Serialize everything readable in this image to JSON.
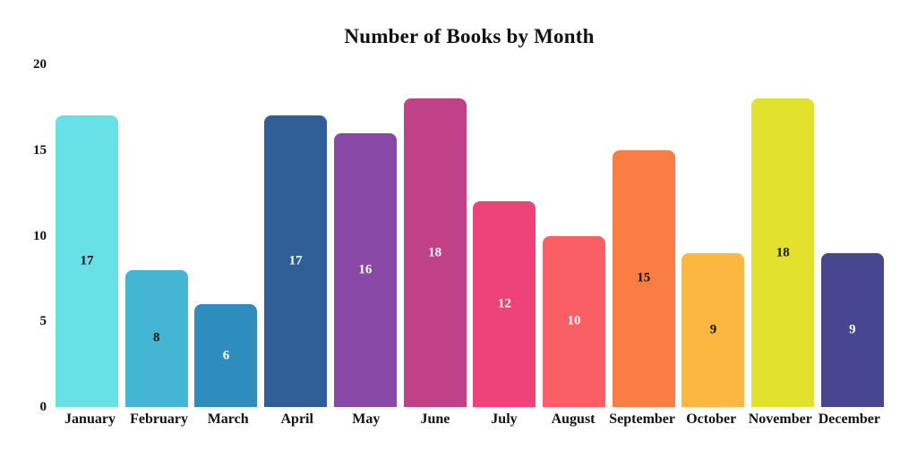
{
  "chart_data": {
    "type": "bar",
    "title": "Number of Books by Month",
    "categories": [
      "January",
      "February",
      "March",
      "April",
      "May",
      "June",
      "July",
      "August",
      "September",
      "October",
      "November",
      "December"
    ],
    "values": [
      17,
      8,
      6,
      17,
      16,
      18,
      12,
      10,
      15,
      9,
      18,
      9
    ],
    "bar_colors": [
      "#68E1E6",
      "#45B5D4",
      "#2E8DBC",
      "#2F5F96",
      "#8849A6",
      "#C04187",
      "#EE4378",
      "#FB5F66",
      "#FA7D44",
      "#FCB740",
      "#E2E22E",
      "#484691"
    ],
    "value_label_colors": [
      "#161616",
      "#161616",
      "#FAFAFA",
      "#FAFAFA",
      "#FAFAFA",
      "#FAFAFA",
      "#FAFAFA",
      "#FAFAFA",
      "#161616",
      "#161616",
      "#161616",
      "#FAFAFA"
    ],
    "value_label_position": "center-of-bar",
    "xlabel": "",
    "ylabel": "",
    "ylim": [
      0,
      20
    ],
    "yticks": [
      0,
      5,
      10,
      15,
      20
    ],
    "grid": false,
    "legend": false,
    "background_color": "#FFFFFF",
    "text_color": "#111111"
  }
}
